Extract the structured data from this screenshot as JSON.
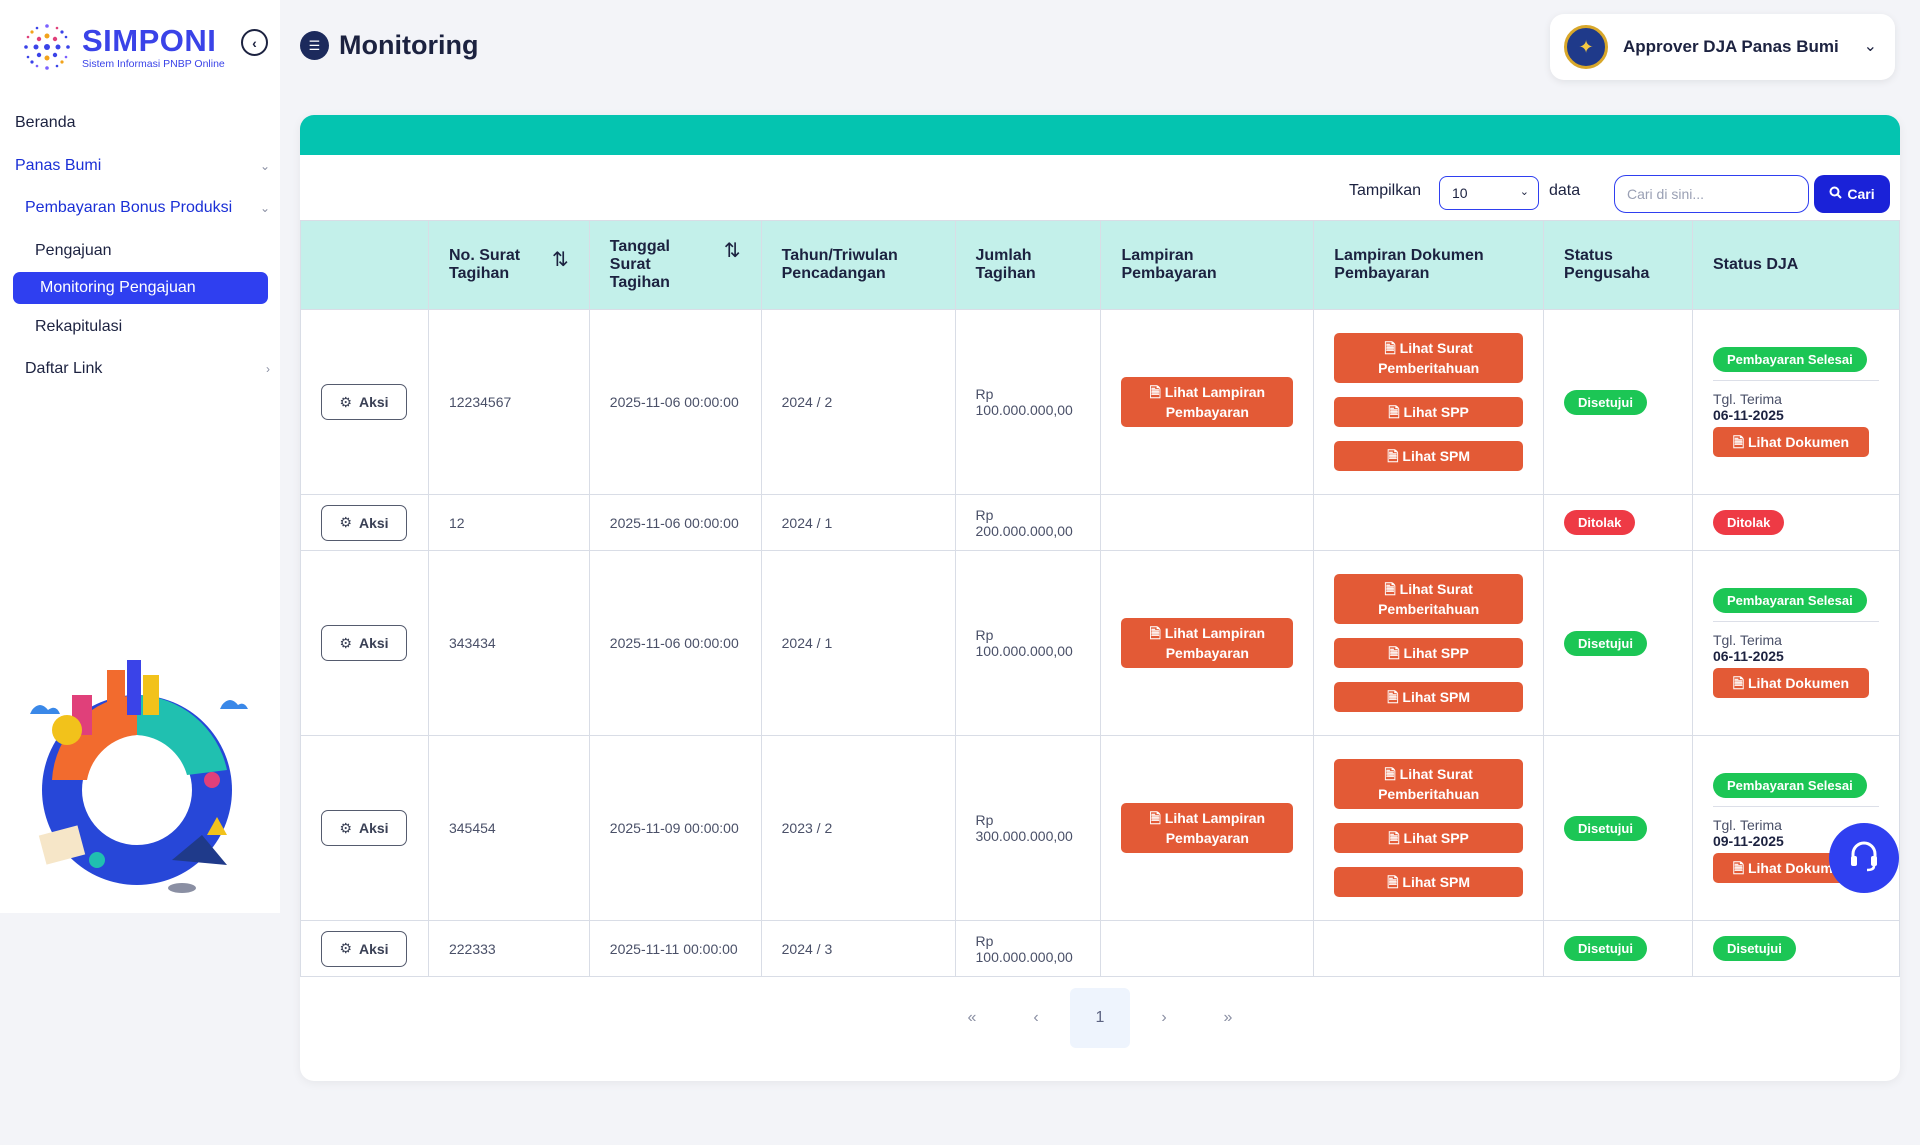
{
  "app": {
    "title": "SIMPONI",
    "subtitle": "Sistem Informasi PNBP Online"
  },
  "sidebar": {
    "items": [
      {
        "label": "Beranda"
      },
      {
        "label": "Panas Bumi"
      },
      {
        "label": "Pembayaran Bonus Produksi"
      },
      {
        "label": "Pengajuan"
      },
      {
        "label": "Monitoring Pengajuan"
      },
      {
        "label": "Rekapitulasi"
      },
      {
        "label": "Daftar Link"
      }
    ]
  },
  "header": {
    "title": "Monitoring",
    "user": "Approver DJA Panas Bumi"
  },
  "toolbar": {
    "show_label": "Tampilkan",
    "page_size": "10",
    "data_label": "data",
    "search_placeholder": "Cari di sini...",
    "search_button": "Cari"
  },
  "table": {
    "columns": [
      "",
      "No. Surat Tagihan",
      "Tanggal Surat Tagihan",
      "Tahun/Triwulan Pencadangan",
      "Jumlah Tagihan",
      "Lampiran Pembayaran",
      "Lampiran Dokumen Pembayaran",
      "Status Pengusaha",
      "Status DJA"
    ],
    "action_label": "Aksi",
    "buttons": {
      "lampiran": "Lihat Lampiran Pembayaran",
      "surat": "Lihat Surat Pemberitahuan",
      "spp": "Lihat SPP",
      "spm": "Lihat SPM",
      "dokumen": "Lihat Dokumen"
    },
    "tgl_label": "Tgl. Terima",
    "rows": [
      {
        "no": "12234567",
        "tanggal": "2025-11-06 00:00:00",
        "tahun": "2024 / 2",
        "jumlah": "Rp 100.000.000,00",
        "status_pengusaha": "Disetujui",
        "status_dja": "Pembayaran Selesai",
        "tgl": "06-11-2025"
      },
      {
        "no": "12",
        "tanggal": "2025-11-06 00:00:00",
        "tahun": "2024 / 1",
        "jumlah": "Rp 200.000.000,00",
        "status_pengusaha": "Ditolak",
        "status_dja": "Ditolak"
      },
      {
        "no": "343434",
        "tanggal": "2025-11-06 00:00:00",
        "tahun": "2024 / 1",
        "jumlah": "Rp 100.000.000,00",
        "status_pengusaha": "Disetujui",
        "status_dja": "Pembayaran Selesai",
        "tgl": "06-11-2025"
      },
      {
        "no": "345454",
        "tanggal": "2025-11-09 00:00:00",
        "tahun": "2023 / 2",
        "jumlah": "Rp 300.000.000,00",
        "status_pengusaha": "Disetujui",
        "status_dja": "Pembayaran Selesai",
        "tgl": "09-11-2025"
      },
      {
        "no": "222333",
        "tanggal": "2025-11-11 00:00:00",
        "tahun": "2024 / 3",
        "jumlah": "Rp 100.000.000,00",
        "status_pengusaha": "Disetujui",
        "status_dja": "Disetujui"
      }
    ]
  },
  "pagination": {
    "first": "«",
    "prev": "‹",
    "current": "1",
    "next": "›",
    "last": "»"
  },
  "colors": {
    "primary": "#2f3ff0",
    "teal": "#04c4b0",
    "header_bg": "#c3f0ea",
    "danger_btn": "#e35a36",
    "success": "#1cc655",
    "reject": "#ee3a45"
  }
}
